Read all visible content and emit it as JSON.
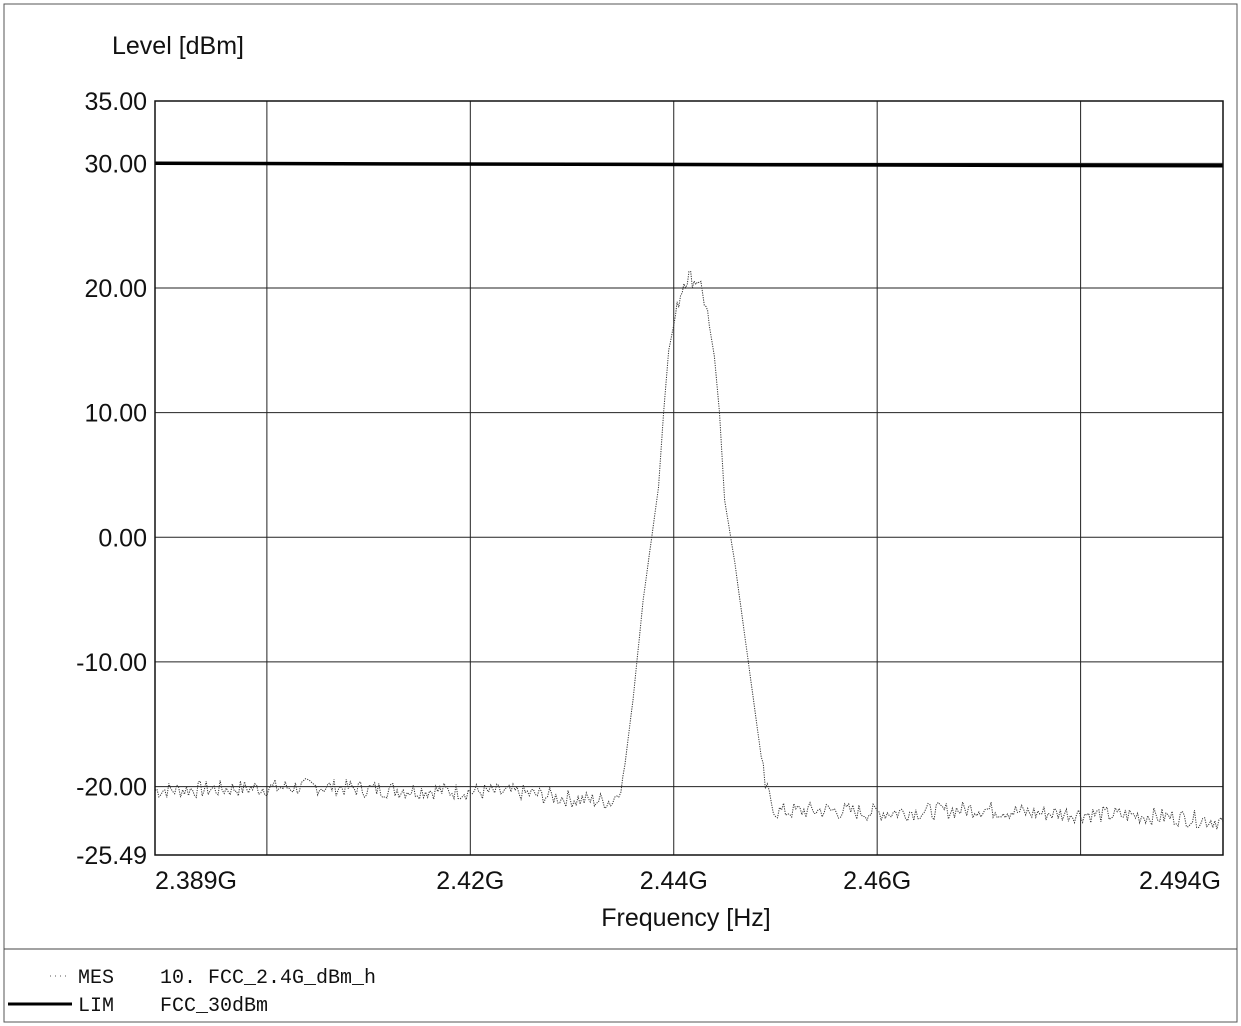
{
  "chart_data": {
    "type": "line",
    "ylabel": "Level [dBm]",
    "xlabel": "Frequency [Hz]",
    "xlim": [
      2.389,
      2.494
    ],
    "ylim": [
      -25.49,
      35.0
    ],
    "x_unit": "GHz",
    "x_tick_labels": [
      {
        "value": 2.389,
        "label": "2.389G"
      },
      {
        "value": 2.42,
        "label": "2.42G"
      },
      {
        "value": 2.44,
        "label": "2.44G"
      },
      {
        "value": 2.46,
        "label": "2.46G"
      },
      {
        "value": 2.494,
        "label": "2.494G"
      }
    ],
    "x_gridlines": [
      2.4,
      2.42,
      2.44,
      2.46,
      2.48
    ],
    "y_ticks": [
      {
        "value": 35.0,
        "label": "35.00"
      },
      {
        "value": 30.0,
        "label": "30.00"
      },
      {
        "value": 20.0,
        "label": "20.00"
      },
      {
        "value": 10.0,
        "label": "10.00"
      },
      {
        "value": 0.0,
        "label": "0.00"
      },
      {
        "value": -10.0,
        "label": "-10.00"
      },
      {
        "value": -20.0,
        "label": "-20.00"
      },
      {
        "value": -25.49,
        "label": "-25.49"
      }
    ],
    "grid": true,
    "series": [
      {
        "name": "MES 10. FCC_2.4G_dBm_h",
        "style": "thin-dotted",
        "color": "#333333",
        "x": [
          2.389,
          2.395,
          2.4,
          2.405,
          2.41,
          2.415,
          2.42,
          2.425,
          2.43,
          2.434,
          2.435,
          2.436,
          2.437,
          2.438,
          2.4385,
          2.439,
          2.4395,
          2.44,
          2.4405,
          2.441,
          2.4415,
          2.442,
          2.4425,
          2.443,
          2.4435,
          2.444,
          2.4445,
          2.445,
          2.446,
          2.447,
          2.448,
          2.449,
          2.45,
          2.455,
          2.46,
          2.465,
          2.47,
          2.475,
          2.48,
          2.485,
          2.49,
          2.494
        ],
        "y": [
          -20.3,
          -20.2,
          -20.1,
          -20.0,
          -20.2,
          -20.3,
          -20.4,
          -20.5,
          -21.0,
          -21.2,
          -19.5,
          -13.0,
          -5.0,
          1.0,
          4.0,
          10.0,
          15.0,
          17.0,
          19.0,
          20.5,
          21.0,
          20.5,
          20.8,
          19.0,
          17.0,
          14.5,
          10.0,
          3.0,
          -2.0,
          -8.0,
          -14.0,
          -20.0,
          -22.0,
          -21.9,
          -22.1,
          -22.0,
          -21.8,
          -22.1,
          -22.2,
          -22.3,
          -22.5,
          -22.8
        ]
      },
      {
        "name": "LIM FCC_30dBm",
        "style": "thick-solid",
        "color": "#000000",
        "x": [
          2.389,
          2.494
        ],
        "y": [
          30.0,
          29.8
        ]
      }
    ],
    "legend": [
      {
        "tag": "MES",
        "name": "10. FCC_2.4G_dBm_h"
      },
      {
        "tag": "LIM",
        "name": "FCC_30dBm"
      }
    ]
  }
}
